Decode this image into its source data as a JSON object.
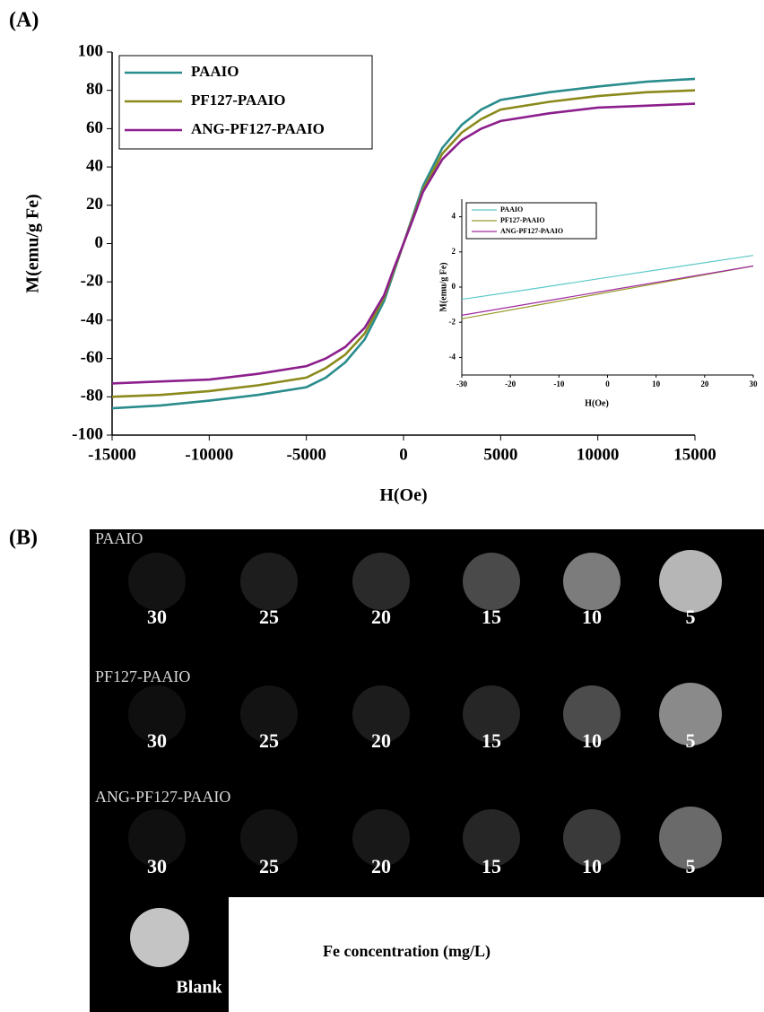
{
  "chart_data": [
    {
      "type": "line",
      "panel_label": "(A)",
      "xlabel": "H(Oe)",
      "ylabel": "M(emu/g Fe)",
      "x": [
        -15000,
        -12500,
        -10000,
        -7500,
        -5000,
        -4000,
        -3000,
        -2000,
        -1000,
        -500,
        0,
        500,
        1000,
        2000,
        3000,
        4000,
        5000,
        7500,
        10000,
        12500,
        15000
      ],
      "series": [
        {
          "name": "PAAIO",
          "color": "#2a8c8c",
          "values": [
            -86,
            -84.5,
            -82,
            -79,
            -75,
            -70,
            -62,
            -50,
            -30,
            -15,
            0,
            15,
            30,
            50,
            62,
            70,
            75,
            79,
            82,
            84.5,
            86
          ]
        },
        {
          "name": "PF127-PAAIO",
          "color": "#8a8a1c",
          "values": [
            -80,
            -79,
            -77,
            -74,
            -70,
            -65,
            -58,
            -47,
            -28,
            -14,
            0,
            14,
            28,
            47,
            58,
            65,
            70,
            74,
            77,
            79,
            80
          ]
        },
        {
          "name": "ANG-PF127-PAAIO",
          "color": "#8c1f8c",
          "values": [
            -73,
            -72,
            -71,
            -68,
            -64,
            -60,
            -54,
            -44,
            -27,
            -13,
            0,
            13,
            27,
            44,
            54,
            60,
            64,
            68,
            71,
            72,
            73
          ]
        }
      ],
      "xlim": [
        -15000,
        15000
      ],
      "xticks": [
        -15000,
        -10000,
        -5000,
        0,
        5000,
        10000,
        15000
      ],
      "ylim": [
        -100,
        100
      ],
      "yticks": [
        -100,
        -80,
        -60,
        -40,
        -20,
        0,
        20,
        40,
        60,
        80,
        100
      ],
      "legend": "upper left"
    },
    {
      "type": "line",
      "xlabel": "H(Oe)",
      "ylabel": "M(emu/g Fe)",
      "x": [
        -30,
        -15,
        0,
        15,
        30
      ],
      "series": [
        {
          "name": "PAAIO",
          "color": "#5cc8c8",
          "values": [
            -0.7,
            -0.08,
            0.55,
            1.18,
            1.8
          ]
        },
        {
          "name": "PF127-PAAIO",
          "color": "#9a9a2a",
          "values": [
            -1.8,
            -1.05,
            -0.3,
            0.45,
            1.2
          ]
        },
        {
          "name": "ANG-PF127-PAAIO",
          "color": "#a02aa0",
          "values": [
            -1.6,
            -0.9,
            -0.2,
            0.5,
            1.2
          ]
        }
      ],
      "xlim": [
        -30,
        30
      ],
      "xticks": [
        -30,
        -20,
        -10,
        0,
        10,
        20,
        30
      ],
      "ylim": [
        -5,
        5
      ],
      "yticks": [
        -4,
        -2,
        0,
        2,
        4
      ],
      "legend": "upper left"
    }
  ],
  "panel_b": {
    "label": "(B)",
    "rows": [
      {
        "name": "PAAIO",
        "concentrations": [
          30,
          25,
          20,
          15,
          10,
          5
        ]
      },
      {
        "name": "PF127-PAAIO",
        "concentrations": [
          30,
          25,
          20,
          15,
          10,
          5
        ]
      },
      {
        "name": "ANG-PF127-PAAIO",
        "concentrations": [
          30,
          25,
          20,
          15,
          10,
          5
        ]
      }
    ],
    "blank": "Blank",
    "caption": "Fe concentration (mg/L)"
  }
}
